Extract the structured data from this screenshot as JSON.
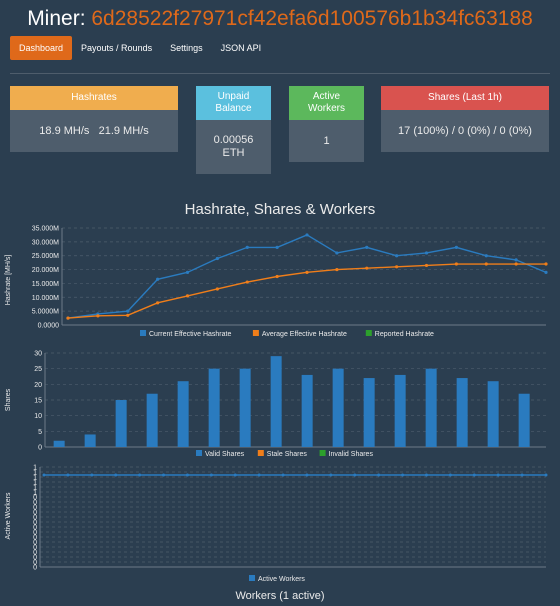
{
  "header": {
    "prefix": "Miner: ",
    "address": "6d28522f27971cf42efa6d100576b1b34fc63188"
  },
  "nav": {
    "items": [
      "Dashboard",
      "Payouts / Rounds",
      "Settings",
      "JSON API"
    ],
    "active": 0
  },
  "panels": {
    "hashrates": {
      "title": "Hashrates",
      "value": "18.9 MH/s   21.9 MH/s",
      "color": "#f0ad4e"
    },
    "unpaid": {
      "title_line1": "Unpaid",
      "title_line2": "Balance",
      "value_line1": "0.00056",
      "value_line2": "ETH",
      "color": "#5bc0de"
    },
    "workers": {
      "title_line1": "Active",
      "title_line2": "Workers",
      "value": "1",
      "color": "#5cb85c"
    },
    "shares": {
      "title": "Shares (Last 1h)",
      "value": "17 (100%) / 0 (0%) / 0 (0%)",
      "color": "#d9534f"
    }
  },
  "charts_title": "Hashrate, Shares & Workers",
  "workers_section_title": "Workers (1 active)",
  "chart_data": [
    {
      "type": "line",
      "ylabel": "Hashrate [MH/s]",
      "ylim": [
        0,
        35000000
      ],
      "y_ticks": [
        "0.0000",
        "5.0000M",
        "10.000M",
        "15.000M",
        "20.000M",
        "25.000M",
        "30.000M",
        "35.000M"
      ],
      "series": [
        {
          "name": "Current Effective Hashrate",
          "color": "#2a7bbf",
          "values": [
            2500000,
            4000000,
            5000000,
            16500000,
            19000000,
            24000000,
            28000000,
            28000000,
            32500000,
            26000000,
            28000000,
            25000000,
            26000000,
            28000000,
            25000000,
            23500000,
            19000000
          ]
        },
        {
          "name": "Average Effective Hashrate",
          "color": "#f07e1a",
          "values": [
            2500000,
            3300000,
            3500000,
            8000000,
            10500000,
            13000000,
            15500000,
            17500000,
            19000000,
            20000000,
            20500000,
            21000000,
            21500000,
            22000000,
            22000000,
            22000000,
            22000000
          ]
        },
        {
          "name": "Reported Hashrate",
          "color": "#2ca02c",
          "values": []
        }
      ]
    },
    {
      "type": "bar",
      "ylabel": "Shares",
      "ylim": [
        0,
        30
      ],
      "y_ticks": [
        "0",
        "5",
        "10",
        "15",
        "20",
        "25",
        "30"
      ],
      "series": [
        {
          "name": "Valid Shares",
          "color": "#2a7bbf",
          "values": [
            2,
            4,
            15,
            17,
            21,
            25,
            25,
            29,
            23,
            25,
            22,
            23,
            25,
            22,
            21,
            17
          ]
        },
        {
          "name": "Stale Shares",
          "color": "#f07e1a",
          "values": []
        },
        {
          "name": "Invalid Shares",
          "color": "#2ca02c",
          "values": []
        }
      ]
    },
    {
      "type": "line",
      "ylabel": "Active Workers",
      "ylim": [
        0,
        1
      ],
      "y_ticks": [
        "0",
        "0",
        "0",
        "0",
        "0",
        "0",
        "0",
        "0",
        "0",
        "0",
        "0",
        "0",
        "0",
        "0",
        "0",
        "1",
        "1",
        "1",
        "1",
        "1",
        "1"
      ],
      "series": [
        {
          "name": "Active Workers",
          "color": "#2a7bbf",
          "values": [
            1,
            1,
            1,
            1,
            1,
            1,
            1,
            1,
            1,
            1,
            1,
            1,
            1,
            1,
            1,
            1,
            1,
            1,
            1,
            1,
            1,
            1
          ]
        }
      ]
    }
  ]
}
